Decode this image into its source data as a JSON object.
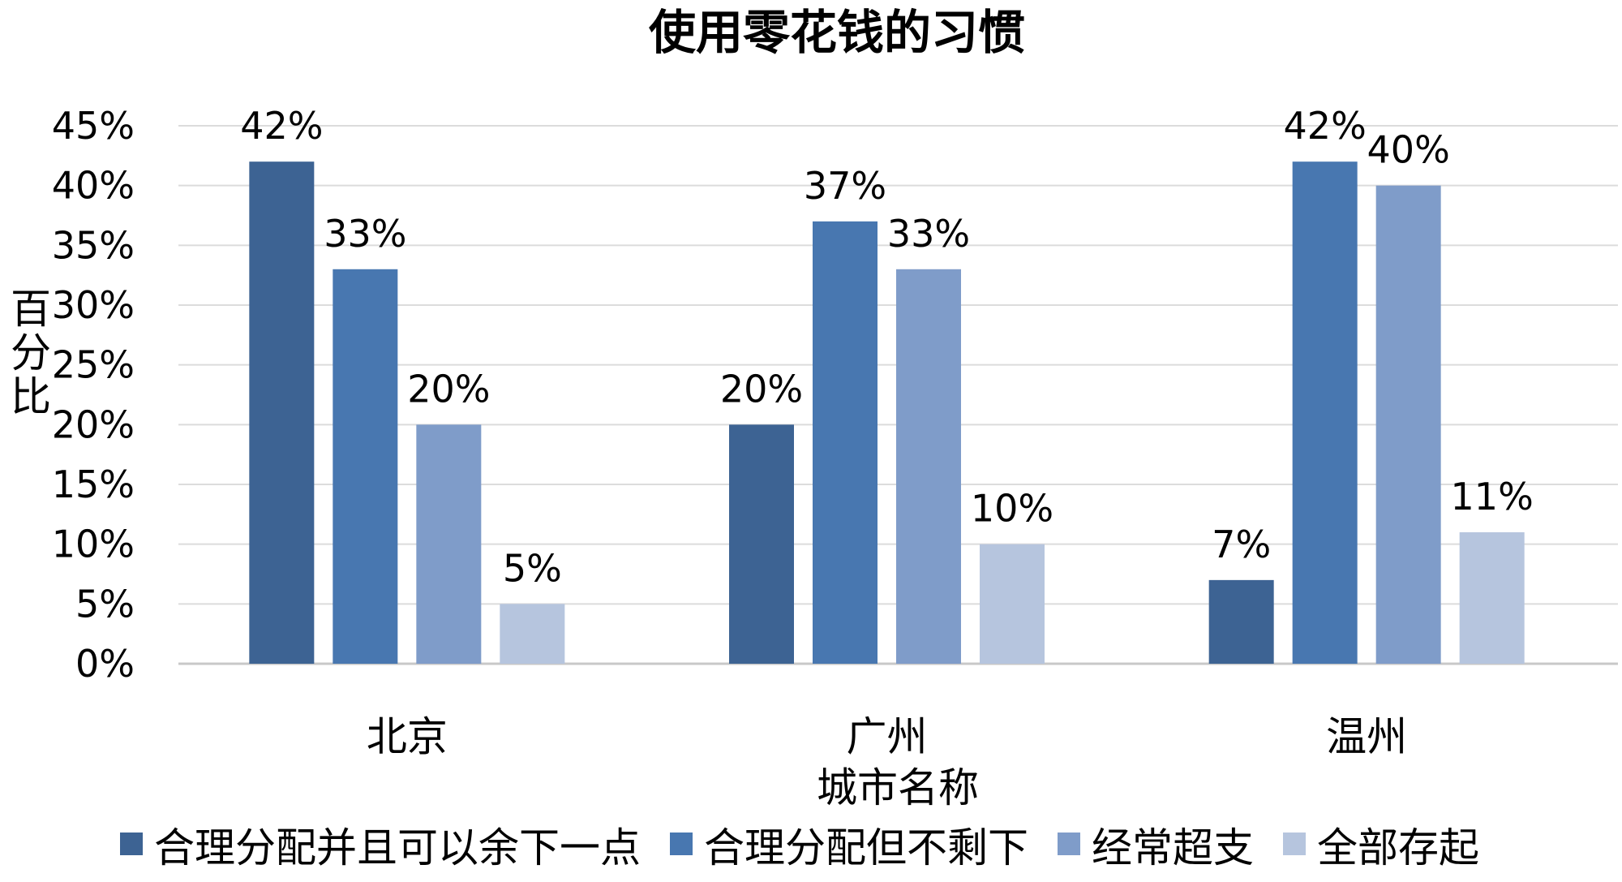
{
  "chart_data": {
    "type": "bar",
    "title": "使用零花钱的习惯",
    "xlabel": "城市名称",
    "ylabel": "百分比",
    "categories": [
      "北京",
      "广州",
      "温州"
    ],
    "ylim": [
      0,
      45
    ],
    "yticks": [
      0,
      5,
      10,
      15,
      20,
      25,
      30,
      35,
      40,
      45
    ],
    "ytick_labels": [
      "0%",
      "5%",
      "10%",
      "15%",
      "20%",
      "25%",
      "30%",
      "35%",
      "40%",
      "45%"
    ],
    "grid": true,
    "legend_position": "bottom",
    "series": [
      {
        "name": "合理分配并且可以余下一点",
        "color": "#3d6393",
        "values": [
          42,
          20,
          7
        ],
        "labels": [
          "42%",
          "20%",
          "7%"
        ]
      },
      {
        "name": "合理分配但不剩下",
        "color": "#4877b0",
        "values": [
          33,
          37,
          42
        ],
        "labels": [
          "33%",
          "37%",
          "42%"
        ]
      },
      {
        "name": "经常超支",
        "color": "#7f9cc9",
        "values": [
          20,
          33,
          40
        ],
        "labels": [
          "20%",
          "33%",
          "40%"
        ]
      },
      {
        "name": "全部存起",
        "color": "#b6c5de",
        "values": [
          5,
          10,
          11
        ],
        "labels": [
          "5%",
          "10%",
          "11%"
        ]
      }
    ]
  }
}
